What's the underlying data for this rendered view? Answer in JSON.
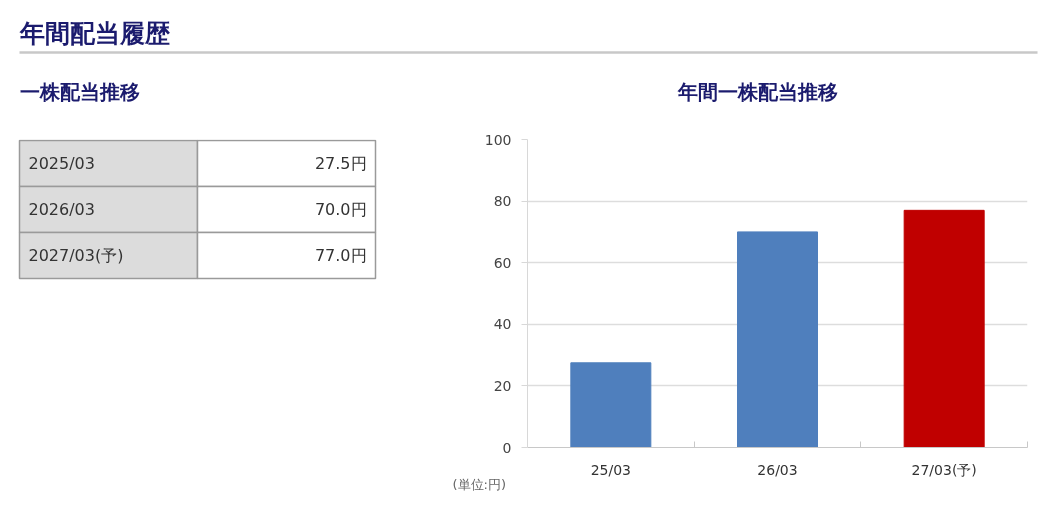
{
  "chart_data": [
    {
      "type": "other",
      "title": "年間配当履歴",
      "subtitle": "一株配当推移",
      "categories": [
        "2025/03",
        "2026/03",
        "2027/03(予)"
      ],
      "value_labels": [
        "27.5円",
        "70.0円",
        "77.0円"
      ]
    },
    {
      "type": "bar",
      "title": "年間一株配当推移",
      "ylabel": "(単位:円)",
      "categories": [
        "25/03",
        "26/03",
        "27/03(予)"
      ],
      "values": [
        27.5,
        70.0,
        77.0
      ],
      "colors": [
        "#4f7fbd",
        "#4f7fbd",
        "#c00000"
      ],
      "ylim": [
        0,
        100
      ],
      "yticks": [
        0,
        20,
        40,
        60,
        80,
        100
      ],
      "grid": "y"
    }
  ]
}
